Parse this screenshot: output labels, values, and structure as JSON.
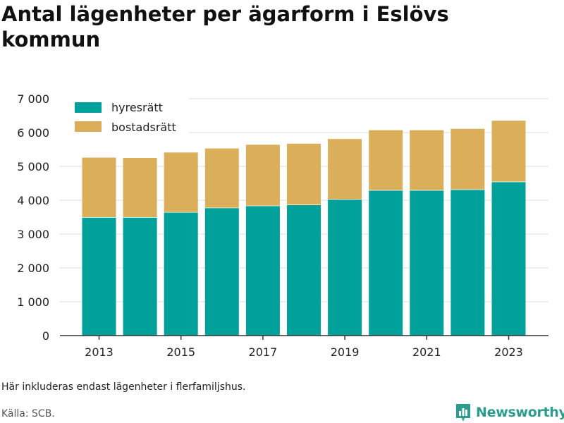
{
  "title": "Antal lägenheter per ägarform i Eslövs kommun",
  "footnote": "Här inkluderas endast lägenheter i flerfamiljshus.",
  "source": "Källa: SCB.",
  "brand": {
    "name": "Newsworthy",
    "icon": "newsworthy-logo-icon"
  },
  "colors": {
    "hyresratt": "#00a19a",
    "bostadsratt": "#dbae5a",
    "grid": "#dddddd",
    "axis": "#333333"
  },
  "chart_data": {
    "type": "bar",
    "stacked": true,
    "title": "Antal lägenheter per ägarform i Eslövs kommun",
    "categories": [
      2013,
      2014,
      2015,
      2016,
      2017,
      2018,
      2019,
      2020,
      2021,
      2022,
      2023
    ],
    "series": [
      {
        "name": "hyresrätt",
        "values": [
          3500,
          3500,
          3650,
          3780,
          3840,
          3870,
          4030,
          4300,
          4300,
          4320,
          4550
        ]
      },
      {
        "name": "bostadsrätt",
        "values": [
          1760,
          1750,
          1760,
          1750,
          1800,
          1800,
          1780,
          1770,
          1770,
          1790,
          1800
        ]
      }
    ],
    "ylim": [
      0,
      7000
    ],
    "yticks": [
      0,
      1000,
      2000,
      3000,
      4000,
      5000,
      6000,
      7000
    ],
    "ytick_labels": [
      "0",
      "1 000",
      "2 000",
      "3 000",
      "4 000",
      "5 000",
      "6 000",
      "7 000"
    ],
    "xticks": [
      2013,
      2015,
      2017,
      2019,
      2021,
      2023
    ],
    "xtick_labels": [
      "2013",
      "2015",
      "2017",
      "2019",
      "2021",
      "2023"
    ],
    "grid": true,
    "legend": "top-left"
  }
}
